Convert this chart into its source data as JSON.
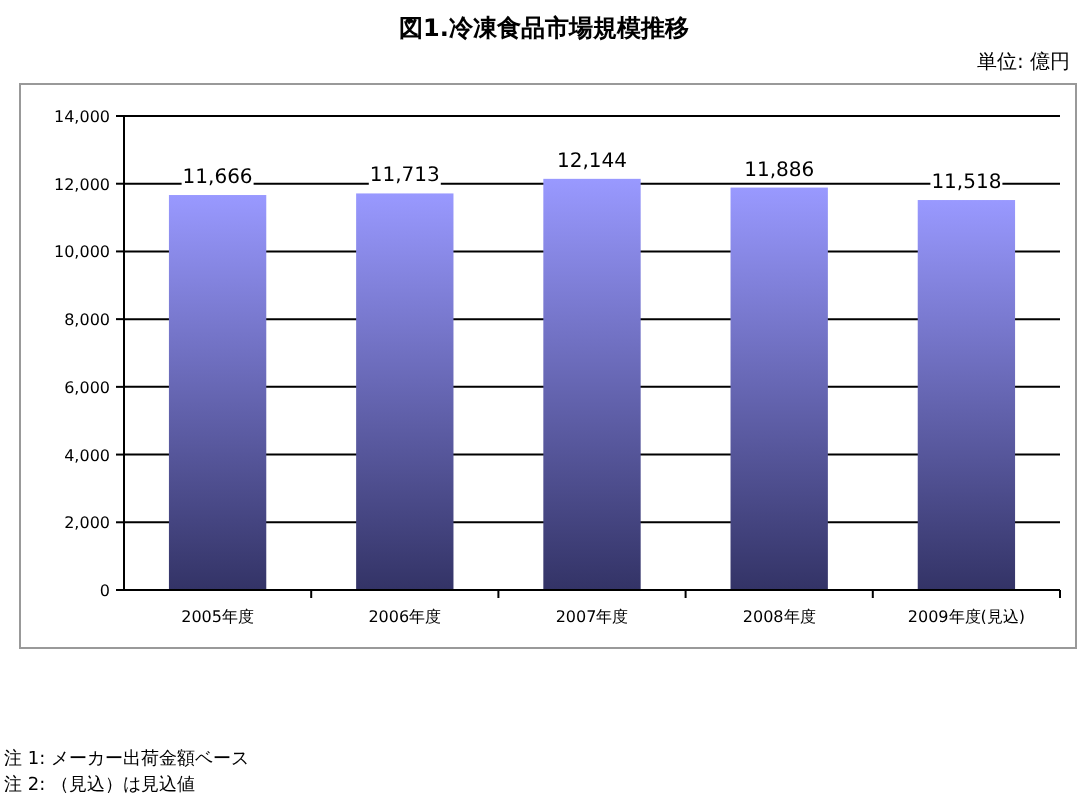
{
  "chart_data": {
    "type": "bar",
    "title": "図1.冷凍食品市場規模推移",
    "subtitle": "単位: 億円",
    "categories": [
      "2005年度",
      "2006年度",
      "2007年度",
      "2008年度",
      "2009年度(見込)"
    ],
    "values": [
      11666,
      11713,
      12144,
      11886,
      11518
    ],
    "value_labels": [
      "11,666",
      "11,713",
      "12,144",
      "11,886",
      "11,518"
    ],
    "color": "#9999ff",
    "ylim": [
      0,
      14000
    ],
    "yticks": [
      0,
      {
        "value": 2000,
        "label": "2,000"
      },
      {
        "value": 4000,
        "label": "4,000"
      },
      {
        "value": 6000,
        "label": "6,000"
      },
      {
        "value": 8000,
        "label": "8,000"
      },
      {
        "value": 10000,
        "label": "10,000"
      },
      {
        "value": 12000,
        "label": "12,000"
      },
      {
        "value": 14000,
        "label": "14,000"
      }
    ],
    "grid": "y",
    "annotations": [
      "注 1: メーカー出荷金額ベース",
      "注 2: （見込）は見込値"
    ]
  }
}
